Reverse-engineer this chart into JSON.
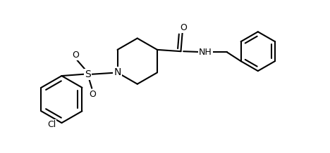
{
  "background_color": "#ffffff",
  "line_color": "#000000",
  "line_width": 1.5,
  "font_size": 9,
  "figsize": [
    4.68,
    2.18
  ],
  "dpi": 100,
  "xlim": [
    0,
    10
  ],
  "ylim": [
    0,
    4.5
  ]
}
